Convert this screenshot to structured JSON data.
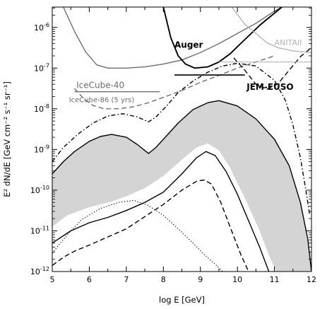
{
  "chart_data": {
    "type": "line",
    "xlabel": "log E [GeV]",
    "ylabel": "E² dN/dE [GeV cm⁻² s⁻¹ sr⁻¹]",
    "xlim": [
      5,
      12
    ],
    "ylim_log10": [
      -12,
      -5.5
    ],
    "y_log_scale": true,
    "x_ticks": [
      5,
      6,
      7,
      8,
      9,
      10,
      11,
      12
    ],
    "x_tick_labels": [
      "5",
      "6",
      "7",
      "8",
      "9",
      "10",
      "11",
      "12"
    ],
    "y_ticks_log10": [
      -12,
      -11,
      -10,
      -9,
      -8,
      -7,
      -6
    ],
    "y_tick_labels": [
      {
        "base": "10",
        "exp": "-12"
      },
      {
        "base": "10",
        "exp": "-11"
      },
      {
        "base": "10",
        "exp": "-10"
      },
      {
        "base": "10",
        "exp": "-9"
      },
      {
        "base": "10",
        "exp": "-8"
      },
      {
        "base": "10",
        "exp": "-7"
      },
      {
        "base": "10",
        "exp": "-6"
      }
    ],
    "band": {
      "color": "#d4d4d4",
      "upper": [
        [
          5.0,
          -9.6
        ],
        [
          5.3,
          -9.3
        ],
        [
          5.6,
          -9.05
        ],
        [
          6.0,
          -8.8
        ],
        [
          6.3,
          -8.68
        ],
        [
          6.6,
          -8.63
        ],
        [
          7.0,
          -8.7
        ],
        [
          7.3,
          -8.88
        ],
        [
          7.6,
          -9.1
        ],
        [
          7.8,
          -8.95
        ],
        [
          8.0,
          -8.75
        ],
        [
          8.4,
          -8.35
        ],
        [
          8.8,
          -8.02
        ],
        [
          9.2,
          -7.85
        ],
        [
          9.5,
          -7.8
        ],
        [
          10.0,
          -7.93
        ],
        [
          10.5,
          -8.25
        ],
        [
          11.0,
          -8.75
        ],
        [
          11.4,
          -9.4
        ],
        [
          11.7,
          -10.3
        ],
        [
          11.9,
          -11.2
        ],
        [
          12.0,
          -12.0
        ]
      ],
      "lower": [
        [
          5.0,
          -10.9
        ],
        [
          5.4,
          -10.62
        ],
        [
          6.0,
          -10.42
        ],
        [
          6.6,
          -10.28
        ],
        [
          7.0,
          -10.15
        ],
        [
          7.5,
          -9.95
        ],
        [
          8.0,
          -9.65
        ],
        [
          8.5,
          -9.25
        ],
        [
          8.9,
          -8.95
        ],
        [
          9.2,
          -8.85
        ],
        [
          9.5,
          -9.02
        ],
        [
          9.8,
          -9.45
        ],
        [
          10.2,
          -10.2
        ],
        [
          10.6,
          -11.0
        ],
        [
          10.85,
          -11.6
        ],
        [
          11.05,
          -12.0
        ]
      ]
    },
    "series": [
      {
        "style": "solid",
        "color": "#000000",
        "points": [
          [
            5.0,
            -9.6
          ],
          [
            5.3,
            -9.3
          ],
          [
            5.6,
            -9.05
          ],
          [
            6.0,
            -8.8
          ],
          [
            6.3,
            -8.68
          ],
          [
            6.6,
            -8.63
          ],
          [
            7.0,
            -8.7
          ],
          [
            7.3,
            -8.88
          ],
          [
            7.6,
            -9.1
          ],
          [
            7.8,
            -8.95
          ],
          [
            8.0,
            -8.75
          ],
          [
            8.4,
            -8.35
          ],
          [
            8.8,
            -8.02
          ],
          [
            9.2,
            -7.85
          ],
          [
            9.5,
            -7.8
          ],
          [
            10.0,
            -7.93
          ],
          [
            10.5,
            -8.25
          ],
          [
            11.0,
            -8.75
          ],
          [
            11.4,
            -9.4
          ],
          [
            11.7,
            -10.3
          ],
          [
            11.9,
            -11.2
          ],
          [
            12.0,
            -12.0
          ]
        ]
      },
      {
        "style": "solid",
        "color": "#000000",
        "points": [
          [
            5.0,
            -11.3
          ],
          [
            5.5,
            -11.0
          ],
          [
            6.0,
            -10.8
          ],
          [
            6.5,
            -10.67
          ],
          [
            7.0,
            -10.5
          ],
          [
            7.5,
            -10.3
          ],
          [
            8.0,
            -10.05
          ],
          [
            8.5,
            -9.6
          ],
          [
            8.9,
            -9.2
          ],
          [
            9.15,
            -9.05
          ],
          [
            9.4,
            -9.15
          ],
          [
            9.7,
            -9.55
          ],
          [
            10.0,
            -10.1
          ],
          [
            10.3,
            -10.75
          ],
          [
            10.6,
            -11.4
          ],
          [
            10.85,
            -12.0
          ]
        ]
      },
      {
        "style": "dashed",
        "color": "#000000",
        "points": [
          [
            5.0,
            -11.85
          ],
          [
            5.3,
            -11.65
          ],
          [
            5.6,
            -11.5
          ],
          [
            6.0,
            -11.35
          ],
          [
            6.5,
            -11.15
          ],
          [
            7.0,
            -10.95
          ],
          [
            7.5,
            -10.65
          ],
          [
            8.0,
            -10.35
          ],
          [
            8.5,
            -10.0
          ],
          [
            8.9,
            -9.78
          ],
          [
            9.1,
            -9.75
          ],
          [
            9.3,
            -9.85
          ],
          [
            9.55,
            -10.3
          ],
          [
            9.8,
            -10.9
          ],
          [
            10.1,
            -11.6
          ],
          [
            10.3,
            -12.0
          ]
        ]
      },
      {
        "style": "dotted",
        "color": "#000000",
        "points": [
          [
            5.0,
            -11.55
          ],
          [
            5.4,
            -11.1
          ],
          [
            5.8,
            -10.72
          ],
          [
            6.3,
            -10.45
          ],
          [
            6.8,
            -10.3
          ],
          [
            7.2,
            -10.25
          ],
          [
            7.6,
            -10.38
          ],
          [
            8.0,
            -10.62
          ],
          [
            8.4,
            -10.95
          ],
          [
            8.8,
            -11.3
          ],
          [
            9.1,
            -11.58
          ],
          [
            9.4,
            -11.82
          ],
          [
            9.6,
            -12.0
          ]
        ]
      },
      {
        "style": "dashdot",
        "color": "#000000",
        "points": [
          [
            5.0,
            -9.3
          ],
          [
            5.3,
            -8.95
          ],
          [
            5.7,
            -8.62
          ],
          [
            6.1,
            -8.35
          ],
          [
            6.5,
            -8.18
          ],
          [
            6.9,
            -8.12
          ],
          [
            7.3,
            -8.2
          ],
          [
            7.6,
            -8.32
          ],
          [
            7.8,
            -8.2
          ],
          [
            8.1,
            -7.92
          ],
          [
            8.4,
            -7.6
          ],
          [
            8.8,
            -7.32
          ],
          [
            9.2,
            -7.1
          ],
          [
            9.6,
            -6.95
          ],
          [
            10.0,
            -6.88
          ],
          [
            10.5,
            -6.95
          ],
          [
            11.0,
            -7.3
          ],
          [
            11.3,
            -7.8
          ],
          [
            11.5,
            -8.4
          ],
          [
            11.7,
            -9.2
          ],
          [
            11.85,
            -10.0
          ],
          [
            11.95,
            -10.6
          ]
        ]
      },
      {
        "name": "IceCube-40",
        "style": "solid",
        "color": "#6e6e6e",
        "points": [
          [
            5.3,
            -5.5
          ],
          [
            5.6,
            -6.1
          ],
          [
            5.9,
            -6.6
          ],
          [
            6.2,
            -6.92
          ],
          [
            6.5,
            -7.0
          ],
          [
            7.0,
            -7.0
          ],
          [
            7.5,
            -6.97
          ],
          [
            8.0,
            -6.9
          ],
          [
            8.5,
            -6.8
          ],
          [
            9.0,
            -6.62
          ],
          [
            9.5,
            -6.4
          ],
          [
            10.0,
            -6.15
          ],
          [
            10.5,
            -5.9
          ],
          [
            11.0,
            -5.6
          ],
          [
            11.2,
            -5.5
          ]
        ]
      },
      {
        "name": "IceCube-86 (5 yrs)",
        "style": "dashed",
        "color": "#6e6e6e",
        "points": [
          [
            5.6,
            -7.5
          ],
          [
            5.85,
            -7.75
          ],
          [
            6.1,
            -7.92
          ],
          [
            6.4,
            -8.0
          ],
          [
            6.8,
            -8.0
          ],
          [
            7.2,
            -7.95
          ],
          [
            7.6,
            -7.85
          ],
          [
            8.0,
            -7.72
          ],
          [
            8.5,
            -7.55
          ],
          [
            9.0,
            -7.35
          ],
          [
            9.5,
            -7.18
          ],
          [
            10.0,
            -7.0
          ],
          [
            10.5,
            -6.85
          ],
          [
            11.0,
            -6.7
          ]
        ]
      },
      {
        "name": "Auger",
        "style": "solid",
        "color": "#000000",
        "points": [
          [
            8.0,
            -5.5
          ],
          [
            8.2,
            -6.25
          ],
          [
            8.4,
            -6.7
          ],
          [
            8.6,
            -6.9
          ],
          [
            8.85,
            -7.0
          ],
          [
            9.2,
            -6.97
          ],
          [
            9.5,
            -6.85
          ],
          [
            9.8,
            -6.65
          ],
          [
            10.2,
            -6.3
          ],
          [
            10.6,
            -5.95
          ],
          [
            11.0,
            -5.65
          ],
          [
            11.2,
            -5.5
          ]
        ]
      },
      {
        "name": "JEM-EUSO",
        "style": "dashed",
        "color": "#000000",
        "points": [
          [
            9.9,
            -6.75
          ],
          [
            10.2,
            -7.05
          ],
          [
            10.5,
            -7.4
          ],
          [
            10.8,
            -7.52
          ],
          [
            11.1,
            -7.38
          ],
          [
            11.4,
            -7.05
          ],
          [
            11.7,
            -6.72
          ],
          [
            12.0,
            -6.5
          ]
        ]
      },
      {
        "name": "ANITAII",
        "style": "solid",
        "color": "#b4b4b4",
        "points": [
          [
            9.85,
            -5.5
          ],
          [
            10.2,
            -5.92
          ],
          [
            10.5,
            -6.15
          ],
          [
            10.8,
            -6.38
          ],
          [
            11.1,
            -6.5
          ],
          [
            11.5,
            -6.58
          ],
          [
            12.0,
            -6.62
          ]
        ]
      }
    ],
    "hlines": [
      {
        "x": [
          8.3,
          10.2
        ],
        "y": -7.17,
        "color": "#000000",
        "width": 1.6
      },
      {
        "x": [
          9.5,
          12.0
        ],
        "y": -6.85,
        "color": "#b4b4b4",
        "width": 1.2
      },
      {
        "x": [
          5.6,
          7.9
        ],
        "y": -7.58,
        "color": "#6e6e6e",
        "width": 1.3
      }
    ],
    "annotations": [
      {
        "text": "Auger",
        "x": 8.3,
        "y": -6.5,
        "size": 12,
        "weight": "bold",
        "color": "#000000"
      },
      {
        "text": "ANITAII",
        "x": 11.0,
        "y": -6.44,
        "size": 11,
        "weight": "normal",
        "color": "#b4b4b4"
      },
      {
        "text": "IceCube-40",
        "x": 5.65,
        "y": -7.49,
        "size": 12,
        "weight": "normal",
        "color": "#6e6e6e"
      },
      {
        "text": "IceCube-86 (5 yrs)",
        "x": 5.45,
        "y": -7.84,
        "size": 10,
        "weight": "normal",
        "color": "#6e6e6e"
      },
      {
        "text": "JEM-EUSO",
        "x": 10.25,
        "y": -7.53,
        "size": 12,
        "weight": "bold",
        "color": "#000000"
      }
    ]
  }
}
